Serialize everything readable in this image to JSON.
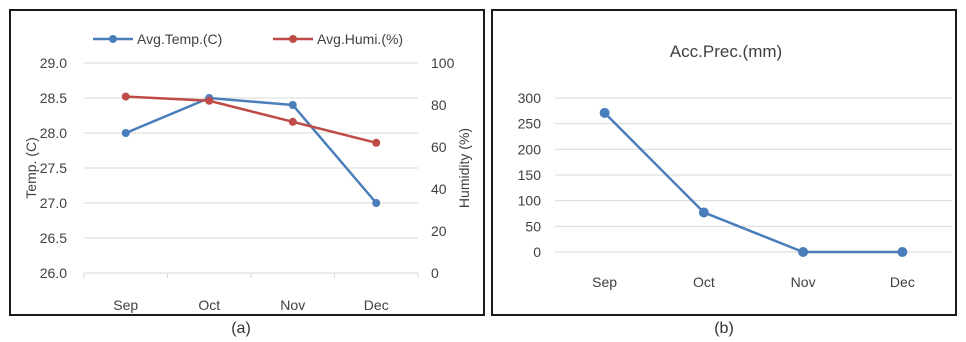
{
  "captions": {
    "a": "(a)",
    "b": "(b)"
  },
  "chart_data": [
    {
      "type": "line",
      "title": "",
      "categories": [
        "Sep",
        "Oct",
        "Nov",
        "Dec"
      ],
      "ylabel_left": "Temp. (C)",
      "ylabel_right": "Humidity (%)",
      "ylim_left": [
        26.0,
        29.0
      ],
      "ylim_right": [
        0,
        100
      ],
      "yticks_left": [
        "26.0",
        "26.5",
        "27.0",
        "27.5",
        "28.0",
        "28.5",
        "29.0"
      ],
      "yticks_right": [
        "0",
        "20",
        "40",
        "60",
        "80",
        "100"
      ],
      "legend_position": "top",
      "grid": true,
      "series": [
        {
          "name": "Avg.Temp.(C)",
          "axis": "left",
          "color": "#4a7ebb",
          "values": [
            28.0,
            28.5,
            28.4,
            27.0
          ]
        },
        {
          "name": "Avg.Humi.(%)",
          "axis": "right",
          "color": "#be4b48",
          "values": [
            84,
            82,
            72,
            62
          ]
        }
      ]
    },
    {
      "type": "line",
      "title": "Acc.Prec.(mm)",
      "categories": [
        "Sep",
        "Oct",
        "Nov",
        "Dec"
      ],
      "ylim": [
        0,
        300
      ],
      "yticks": [
        "0",
        "50",
        "100",
        "150",
        "200",
        "250",
        "300"
      ],
      "grid": true,
      "series": [
        {
          "color": "#4a7ebb",
          "values": [
            271,
            77,
            0,
            0
          ]
        }
      ]
    }
  ]
}
